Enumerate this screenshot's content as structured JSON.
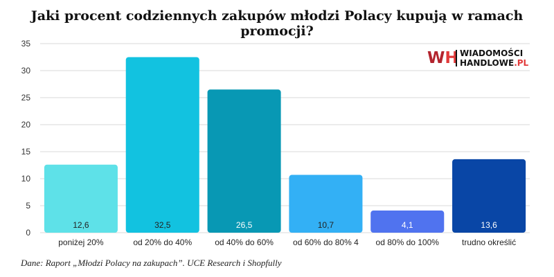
{
  "title": "Jaki procent codziennych zakupów młodzi Polacy kupują w ramach promocji?",
  "source": "Dane: Raport „Młodzi Polacy na zakupach”. UCE Research i Shopfully",
  "logo": {
    "mark_w": "W",
    "mark_h": "H",
    "line1": "WIADOMOŚCI",
    "line2": "HANDLOWE",
    "line2_suffix": ".PL"
  },
  "colors": {
    "grid": "#d9d9d9",
    "axis_text": "#333333"
  },
  "chart_data": {
    "type": "bar",
    "title": "Jaki procent codziennych zakupów młodzi Polacy kupują w ramach promocji?",
    "xlabel": "",
    "ylabel": "",
    "ylim": [
      0,
      35
    ],
    "yticks": [
      0,
      5,
      10,
      15,
      20,
      25,
      30,
      35
    ],
    "grid": true,
    "legend": "none",
    "categories": [
      "poniżej 20%",
      "od 20% do 40%",
      "od 40% do 60%",
      "od 60% do 80% 4",
      "od 80% do 100%",
      "trudno określić"
    ],
    "values": [
      12.6,
      32.5,
      26.5,
      10.7,
      4.1,
      13.6
    ],
    "value_labels": [
      "12,6",
      "32,5",
      "26,5",
      "10,7",
      "4,1",
      "13,6"
    ],
    "bar_colors": [
      "#5ee1e8",
      "#12c2e0",
      "#0898b4",
      "#33b0f5",
      "#5073ef",
      "#0946a6"
    ],
    "label_colors": [
      "#222222",
      "#222222",
      "#ffffff",
      "#222222",
      "#ffffff",
      "#ffffff"
    ]
  }
}
